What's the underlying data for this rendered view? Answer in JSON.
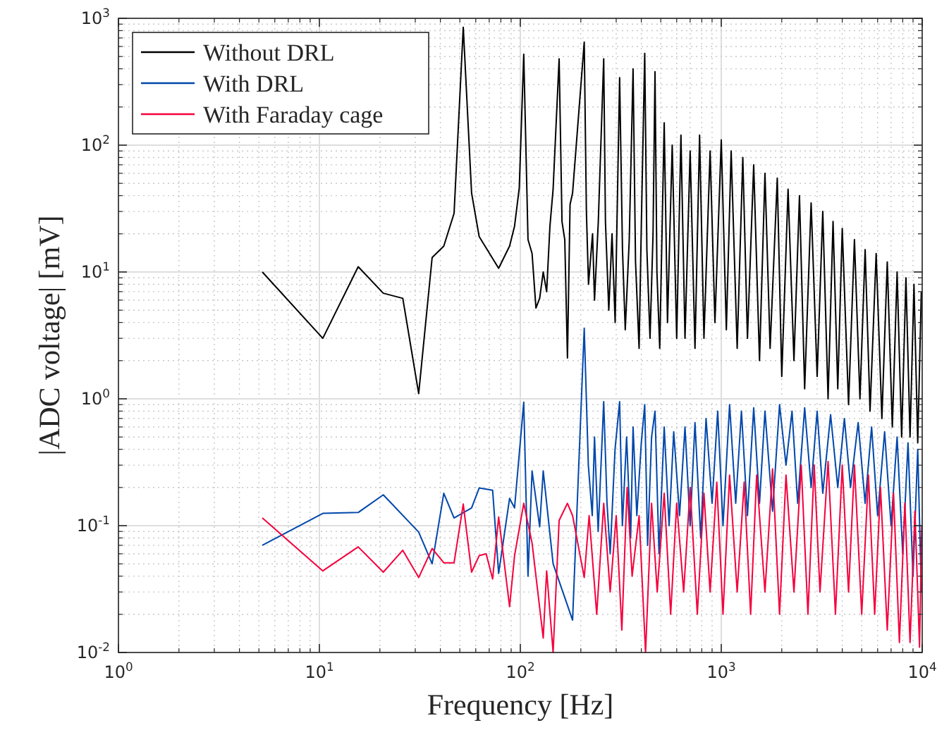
{
  "chart_data": {
    "type": "line",
    "xlabel": "Frequency [Hz]",
    "ylabel": "|ADC voltage| [mV]",
    "log": "xy",
    "grid": true,
    "legend": "top left",
    "line_style": "solid",
    "marker": "none",
    "xlim": [
      1,
      10000
    ],
    "xticks": [
      {
        "value": 1,
        "label": "10$^{0}$"
      },
      {
        "value": 10,
        "label": "10$^{1}$"
      },
      {
        "value": 100,
        "label": "10$^{2}$"
      },
      {
        "value": 1000,
        "label": "10$^{3}$"
      },
      {
        "value": 10000,
        "label": "10$^{4}$"
      }
    ],
    "ylim": [
      0.01,
      1000
    ],
    "yticks": [
      {
        "value": 0.01,
        "label": "10$^{-2}$"
      },
      {
        "value": 0.1,
        "label": "10$^{-1}$"
      },
      {
        "value": 1,
        "label": "10$^{0}$"
      },
      {
        "value": 10,
        "label": "10$^{1}$"
      },
      {
        "value": 100,
        "label": "10$^{2}$"
      },
      {
        "value": 1000,
        "label": "10$^{3}$"
      }
    ],
    "series": [
      {
        "name": "Without DRL",
        "color": "#000000",
        "x": [
          5.2,
          10.4,
          15.6,
          20.8,
          26,
          31.2,
          36.4,
          41.6,
          46.8,
          52,
          57.2,
          62.4,
          78,
          88.4,
          93.6,
          98.8,
          104,
          109.2,
          114.4,
          119.6,
          124.8,
          130,
          135.2,
          140.4,
          145.6,
          156,
          161.2,
          166.4,
          171.6,
          176.8,
          182,
          208,
          213.2,
          218.4,
          228.8,
          234,
          244.4,
          260,
          265.2,
          275.6,
          286,
          296.4,
          312,
          322.4,
          332.8,
          348.4,
          364,
          374.4,
          390,
          400.4,
          416,
          426.4,
          442,
          457.6,
          468,
          478.4,
          494,
          520,
          540,
          570,
          600,
          630,
          660,
          700,
          740,
          780,
          820,
          880,
          930,
          1000,
          1060,
          1120,
          1200,
          1280,
          1350,
          1450,
          1550,
          1650,
          1750,
          1900,
          2000,
          2150,
          2300,
          2450,
          2600,
          2800,
          3000,
          3200,
          3400,
          3600,
          3800,
          4000,
          4300,
          4600,
          4900,
          5200,
          5500,
          5900,
          6300,
          6700,
          7100,
          7500,
          7900,
          8300,
          8700,
          9100,
          9500,
          9900
        ],
        "values": [
          10,
          3,
          11,
          6.8,
          6.2,
          1.1,
          13,
          16,
          29,
          850,
          42,
          19,
          10.7,
          16,
          23,
          46,
          520,
          18,
          14,
          5.2,
          6.2,
          10,
          7,
          23,
          45,
          480,
          25,
          18,
          2.1,
          34,
          42,
          650,
          30,
          8,
          20,
          6,
          25,
          480,
          25,
          5,
          20,
          4,
          340,
          15,
          3.5,
          18,
          400,
          12,
          2.5,
          25,
          530,
          15,
          3,
          20,
          380,
          10,
          2.5,
          150,
          4,
          100,
          3,
          120,
          3,
          90,
          2.5,
          120,
          3,
          90,
          4,
          110,
          3.5,
          90,
          2.5,
          80,
          3,
          70,
          2,
          60,
          2.5,
          55,
          1.5,
          45,
          2,
          40,
          1.2,
          35,
          1.5,
          30,
          1,
          25,
          1.2,
          22,
          0.9,
          18,
          1,
          15,
          0.8,
          14,
          0.7,
          12,
          0.6,
          10,
          0.5,
          9,
          0.5,
          8,
          0.45,
          7
        ]
      },
      {
        "name": "With DRL",
        "color": "#0047ab",
        "x": [
          5.2,
          10.4,
          15.6,
          20.8,
          31.2,
          36.4,
          41.6,
          46.8,
          57.2,
          62.4,
          72.8,
          78,
          88.4,
          93.6,
          104,
          109.2,
          114.4,
          124.8,
          130,
          145.6,
          182,
          208,
          218,
          228,
          234,
          244,
          260,
          270,
          280,
          296,
          312,
          322,
          338,
          354,
          364,
          380,
          400,
          416,
          430,
          450,
          468,
          490,
          520,
          550,
          580,
          620,
          660,
          700,
          740,
          790,
          840,
          900,
          960,
          1020,
          1100,
          1180,
          1260,
          1350,
          1450,
          1550,
          1650,
          1800,
          1950,
          2100,
          2250,
          2400,
          2600,
          2800,
          3000,
          3200,
          3500,
          3800,
          4100,
          4400,
          4800,
          5200,
          5600,
          6000,
          6500,
          7000,
          7500,
          8000,
          8500,
          9000,
          9500,
          9900
        ],
        "values": [
          0.07,
          0.125,
          0.127,
          0.175,
          0.089,
          0.05,
          0.18,
          0.115,
          0.138,
          0.198,
          0.19,
          0.042,
          0.164,
          0.138,
          0.94,
          0.04,
          0.27,
          0.098,
          0.27,
          0.05,
          0.018,
          3.6,
          0.3,
          0.12,
          0.5,
          0.09,
          0.95,
          0.15,
          0.06,
          0.4,
          0.95,
          0.1,
          0.5,
          0.08,
          0.6,
          0.12,
          0.45,
          0.9,
          0.07,
          0.5,
          0.8,
          0.06,
          0.6,
          0.1,
          0.55,
          0.12,
          0.6,
          0.1,
          0.65,
          0.08,
          0.7,
          0.15,
          0.8,
          0.1,
          0.9,
          0.15,
          0.8,
          0.12,
          0.85,
          0.15,
          0.8,
          0.13,
          0.9,
          0.3,
          0.8,
          0.15,
          0.85,
          0.2,
          0.8,
          0.18,
          0.75,
          0.2,
          0.7,
          0.2,
          0.65,
          0.15,
          0.6,
          0.12,
          0.55,
          0.1,
          0.5,
          0.06,
          0.45,
          0.04,
          0.4,
          0.03
        ]
      },
      {
        "name": "With Faraday cage",
        "color": "#f5003d",
        "x": [
          5.2,
          10.4,
          15.6,
          20.8,
          26,
          31.2,
          36.4,
          41.6,
          46.8,
          52,
          57.2,
          62.4,
          67.6,
          72.8,
          78,
          88.4,
          93.6,
          104,
          114.4,
          130,
          135.2,
          145.6,
          156,
          171.6,
          182,
          208,
          220,
          240,
          260,
          280,
          300,
          320,
          340,
          360,
          390,
          420,
          450,
          480,
          520,
          560,
          600,
          650,
          700,
          760,
          820,
          880,
          950,
          1020,
          1100,
          1200,
          1300,
          1400,
          1500,
          1650,
          1800,
          1950,
          2100,
          2300,
          2500,
          2700,
          2900,
          3100,
          3400,
          3700,
          4000,
          4300,
          4600,
          5000,
          5400,
          5800,
          6200,
          6700,
          7200,
          7700,
          8200,
          8700,
          9200,
          9700,
          9950
        ],
        "values": [
          0.115,
          0.044,
          0.068,
          0.043,
          0.064,
          0.039,
          0.066,
          0.051,
          0.051,
          0.148,
          0.043,
          0.058,
          0.06,
          0.038,
          0.117,
          0.023,
          0.058,
          0.15,
          0.073,
          0.013,
          0.044,
          0.01,
          0.11,
          0.15,
          0.12,
          0.039,
          0.12,
          0.02,
          0.15,
          0.03,
          0.12,
          0.015,
          0.2,
          0.04,
          0.12,
          0.01,
          0.15,
          0.03,
          0.18,
          0.02,
          0.15,
          0.03,
          0.2,
          0.02,
          0.18,
          0.03,
          0.22,
          0.02,
          0.25,
          0.03,
          0.22,
          0.02,
          0.25,
          0.03,
          0.28,
          0.02,
          0.25,
          0.03,
          0.3,
          0.02,
          0.3,
          0.03,
          0.32,
          0.02,
          0.3,
          0.03,
          0.3,
          0.02,
          0.25,
          0.02,
          0.2,
          0.015,
          0.18,
          0.012,
          0.15,
          0.012,
          0.13,
          0.011,
          0.1
        ]
      }
    ]
  }
}
